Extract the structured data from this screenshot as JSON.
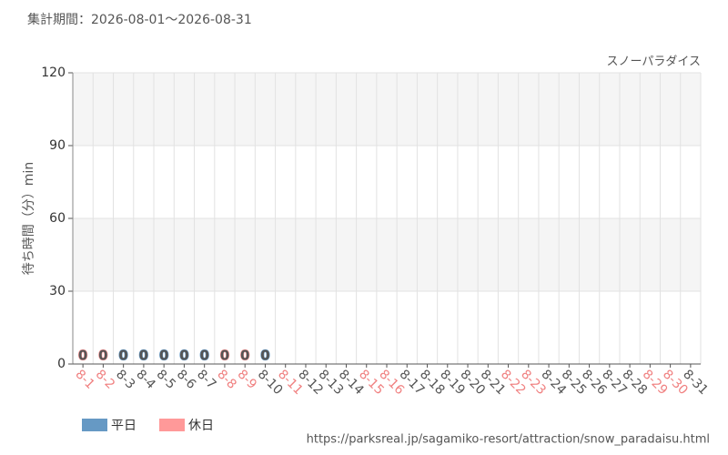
{
  "chart_data": {
    "type": "bar",
    "title": "集計期間：2026-08-01～2026-08-31",
    "subtitle": "スノーパラダイス",
    "y_axis_label": "待ち時間（分）min",
    "source": "https://parksreal.jp/sagamiko-resort/attraction/snow_paradaisu.html",
    "categories": [
      "8-1",
      "8-2",
      "8-3",
      "8-4",
      "8-5",
      "8-6",
      "8-7",
      "8-8",
      "8-9",
      "8-10",
      "8-11",
      "8-12",
      "8-13",
      "8-14",
      "8-15",
      "8-16",
      "8-17",
      "8-18",
      "8-19",
      "8-20",
      "8-21",
      "8-22",
      "8-23",
      "8-24",
      "8-25",
      "8-26",
      "8-27",
      "8-28",
      "8-29",
      "8-30",
      "8-31"
    ],
    "category_label_colors": [
      "#f08080",
      "#f08080",
      "#555555",
      "#555555",
      "#555555",
      "#555555",
      "#555555",
      "#f08080",
      "#f08080",
      "#555555",
      "#f08080",
      "#555555",
      "#555555",
      "#555555",
      "#f08080",
      "#f08080",
      "#555555",
      "#555555",
      "#555555",
      "#555555",
      "#555555",
      "#f08080",
      "#f08080",
      "#555555",
      "#555555",
      "#555555",
      "#555555",
      "#555555",
      "#f08080",
      "#f08080",
      "#555555"
    ],
    "series": [
      {
        "name": "平日",
        "color": "#6699c4",
        "values": [
          null,
          null,
          0,
          0,
          0,
          0,
          0,
          null,
          null,
          0,
          null,
          null,
          null,
          null,
          null,
          null,
          null,
          null,
          null,
          null,
          null,
          null,
          null,
          null,
          null,
          null,
          null,
          null,
          null,
          null,
          null
        ]
      },
      {
        "name": "休日",
        "color": "#ff9999",
        "values": [
          0,
          0,
          null,
          null,
          null,
          null,
          null,
          0,
          0,
          null,
          null,
          null,
          null,
          null,
          null,
          null,
          null,
          null,
          null,
          null,
          null,
          null,
          null,
          null,
          null,
          null,
          null,
          null,
          null,
          null,
          null
        ]
      }
    ],
    "ylim": [
      0,
      120
    ],
    "yticks": [
      0,
      30,
      60,
      90,
      120
    ],
    "grid": true,
    "legend": "bottom-left"
  }
}
